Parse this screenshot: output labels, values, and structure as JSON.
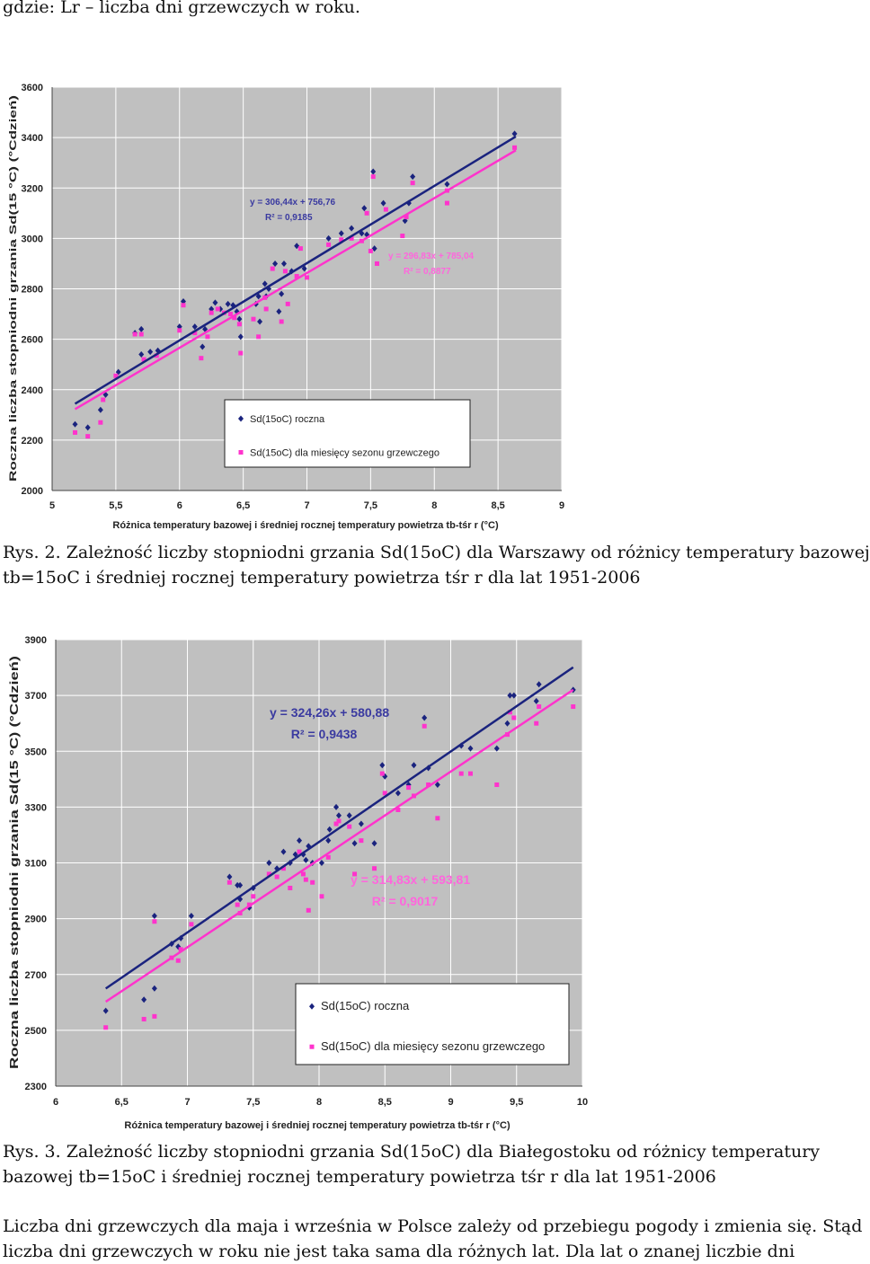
{
  "header_text": "gdzie: Lr – liczba dni grzewczych w roku.",
  "caption1": {
    "line1": "Rys. 2. Zależność liczby stopniodni grzania Sd(15oC) dla Warszawy od różnicy temperatury bazowej",
    "line2": "tb=15oC i średniej rocznej temperatury powietrza tśr r dla lat 1951-2006"
  },
  "caption2": {
    "line1": "Rys. 3. Zależność liczby stopniodni grzania Sd(15oC) dla Białegostoku od różnicy temperatury",
    "line2": "bazowej tb=15oC i średniej rocznej temperatury powietrza tśr r dla lat 1951-2006"
  },
  "footer": {
    "line1": "Liczba dni grzewczych dla maja i września w Polsce zależy od przebiegu pogody i zmienia się. Stąd",
    "line2": "liczba dni grzewczych w roku nie jest taka sama dla różnych lat. Dla lat o znanej liczbie dni"
  },
  "colors": {
    "plot_bg": "#c0c0c0",
    "grid": "#ffffff",
    "series_annual": "#1a237e",
    "series_season": "#ff33cc",
    "regression_annual_text": "#3a3aa0",
    "regression_season_text": "#ff66dd"
  },
  "chart_data": [
    {
      "type": "scatter",
      "title": "",
      "xlabel": "Różnica temperatury bazowej i średniej rocznej temperatury powietrza tb-tśr r (°C)",
      "ylabel": "Roczna liczba stopniodni grzania Sd(15 °C) (°Cdzień)",
      "xlim": [
        5,
        9
      ],
      "ylim": [
        2000,
        3600
      ],
      "xticks": [
        "5",
        "5,5",
        "6",
        "6,5",
        "7",
        "7,5",
        "8",
        "8,5",
        "9"
      ],
      "yticks": [
        "2000",
        "2200",
        "2400",
        "2600",
        "2800",
        "3000",
        "3200",
        "3400",
        "3600"
      ],
      "grid": true,
      "legend": {
        "placement": "bottom-center",
        "entries": [
          "Sd(15oC) roczna",
          "Sd(15oC) dla miesięcy sezonu grzewczego"
        ]
      },
      "annotations": [
        {
          "series": "annual",
          "line1": "y = 306,44x + 756,76",
          "line2": "R² = 0,9185"
        },
        {
          "series": "season",
          "line1": "y = 296,83x + 785,04",
          "line2": "R² = 0,8877"
        }
      ],
      "trendlines": [
        {
          "series": "annual",
          "slope": 306.44,
          "intercept": 756.76,
          "x_range": [
            5.18,
            8.64
          ]
        },
        {
          "series": "season",
          "slope": 296.83,
          "intercept": 785.04,
          "x_range": [
            5.18,
            8.64
          ]
        }
      ],
      "series": [
        {
          "name": "Sd(15oC) roczna",
          "key": "annual",
          "points": [
            [
              5.18,
              2263
            ],
            [
              5.28,
              2250
            ],
            [
              5.38,
              2320
            ],
            [
              5.42,
              2380
            ],
            [
              5.52,
              2470
            ],
            [
              5.65,
              2625
            ],
            [
              5.7,
              2640
            ],
            [
              5.7,
              2540
            ],
            [
              5.77,
              2550
            ],
            [
              5.83,
              2555
            ],
            [
              6.0,
              2650
            ],
            [
              6.03,
              2750
            ],
            [
              6.12,
              2650
            ],
            [
              6.18,
              2570
            ],
            [
              6.2,
              2640
            ],
            [
              6.25,
              2720
            ],
            [
              6.28,
              2745
            ],
            [
              6.32,
              2720
            ],
            [
              6.38,
              2740
            ],
            [
              6.42,
              2735
            ],
            [
              6.45,
              2710
            ],
            [
              6.47,
              2680
            ],
            [
              6.48,
              2610
            ],
            [
              6.6,
              2740
            ],
            [
              6.62,
              2770
            ],
            [
              6.63,
              2670
            ],
            [
              6.67,
              2820
            ],
            [
              6.68,
              2770
            ],
            [
              6.7,
              2800
            ],
            [
              6.75,
              2900
            ],
            [
              6.78,
              2710
            ],
            [
              6.8,
              2780
            ],
            [
              6.82,
              2900
            ],
            [
              6.88,
              2870
            ],
            [
              6.92,
              2970
            ],
            [
              6.98,
              2880
            ],
            [
              7.17,
              3000
            ],
            [
              7.27,
              3020
            ],
            [
              7.35,
              3040
            ],
            [
              7.43,
              3020
            ],
            [
              7.45,
              3120
            ],
            [
              7.47,
              3015
            ],
            [
              7.52,
              3265
            ],
            [
              7.53,
              2960
            ],
            [
              7.6,
              3140
            ],
            [
              7.77,
              3070
            ],
            [
              7.8,
              3140
            ],
            [
              7.83,
              3245
            ],
            [
              8.1,
              3215
            ],
            [
              8.63,
              3415
            ]
          ]
        },
        {
          "name": "Sd(15oC) dla miesięcy sezonu grzewczego",
          "key": "season",
          "points": [
            [
              5.18,
              2230
            ],
            [
              5.28,
              2215
            ],
            [
              5.38,
              2270
            ],
            [
              5.4,
              2360
            ],
            [
              5.5,
              2455
            ],
            [
              5.65,
              2620
            ],
            [
              5.7,
              2620
            ],
            [
              5.72,
              2520
            ],
            [
              5.82,
              2535
            ],
            [
              6.0,
              2635
            ],
            [
              6.03,
              2735
            ],
            [
              6.12,
              2625
            ],
            [
              6.17,
              2525
            ],
            [
              6.22,
              2610
            ],
            [
              6.25,
              2705
            ],
            [
              6.3,
              2720
            ],
            [
              6.35,
              2705
            ],
            [
              6.4,
              2700
            ],
            [
              6.43,
              2685
            ],
            [
              6.47,
              2660
            ],
            [
              6.48,
              2545
            ],
            [
              6.58,
              2680
            ],
            [
              6.62,
              2610
            ],
            [
              6.67,
              2765
            ],
            [
              6.68,
              2720
            ],
            [
              6.73,
              2880
            ],
            [
              6.8,
              2670
            ],
            [
              6.83,
              2870
            ],
            [
              6.85,
              2740
            ],
            [
              6.92,
              2850
            ],
            [
              6.95,
              2960
            ],
            [
              7.0,
              2845
            ],
            [
              7.17,
              2975
            ],
            [
              7.27,
              2995
            ],
            [
              7.35,
              3000
            ],
            [
              7.43,
              2990
            ],
            [
              7.47,
              3100
            ],
            [
              7.5,
              2950
            ],
            [
              7.52,
              3245
            ],
            [
              7.55,
              2900
            ],
            [
              7.62,
              3115
            ],
            [
              7.75,
              3010
            ],
            [
              7.78,
              3085
            ],
            [
              7.83,
              3220
            ],
            [
              8.1,
              3140
            ],
            [
              8.1,
              3190
            ],
            [
              8.63,
              3360
            ]
          ]
        }
      ]
    },
    {
      "type": "scatter",
      "title": "",
      "xlabel": "Różnica temperatury bazowej i średniej rocznej temperatury powietrza tb-tśr r (°C)",
      "ylabel": "Roczna liczba stopniodni grzania Sd(15 °C) (°Cdzień)",
      "xlim": [
        6,
        10
      ],
      "ylim": [
        2300,
        3900
      ],
      "xticks": [
        "6",
        "6,5",
        "7",
        "7,5",
        "8",
        "8,5",
        "9",
        "9,5",
        "10"
      ],
      "yticks": [
        "2300",
        "2500",
        "2700",
        "2900",
        "3100",
        "3300",
        "3500",
        "3700",
        "3900"
      ],
      "grid": true,
      "legend": {
        "placement": "bottom-right",
        "entries": [
          "Sd(15oC) roczna",
          "Sd(15oC) dla miesięcy sezonu grzewczego"
        ]
      },
      "annotations": [
        {
          "series": "annual",
          "line1": "y = 324,26x + 580,88",
          "line2": "R² = 0,9438"
        },
        {
          "series": "season",
          "line1": "y = 314,83x + 593,81",
          "line2": "R² = 0,9017"
        }
      ],
      "trendlines": [
        {
          "series": "annual",
          "slope": 324.26,
          "intercept": 580.88,
          "x_range": [
            6.38,
            9.93
          ]
        },
        {
          "series": "season",
          "slope": 314.83,
          "intercept": 593.81,
          "x_range": [
            6.38,
            9.93
          ]
        }
      ],
      "series": [
        {
          "name": "Sd(15oC) roczna",
          "key": "annual",
          "points": [
            [
              6.38,
              2570
            ],
            [
              6.67,
              2610
            ],
            [
              6.75,
              2650
            ],
            [
              6.75,
              2910
            ],
            [
              6.88,
              2810
            ],
            [
              6.93,
              2800
            ],
            [
              6.95,
              2830
            ],
            [
              7.03,
              2910
            ],
            [
              7.32,
              3050
            ],
            [
              7.38,
              3020
            ],
            [
              7.4,
              3020
            ],
            [
              7.4,
              2970
            ],
            [
              7.47,
              2940
            ],
            [
              7.5,
              3010
            ],
            [
              7.62,
              3100
            ],
            [
              7.68,
              3080
            ],
            [
              7.73,
              3140
            ],
            [
              7.78,
              3100
            ],
            [
              7.82,
              3130
            ],
            [
              7.85,
              3180
            ],
            [
              7.88,
              3130
            ],
            [
              7.9,
              3110
            ],
            [
              7.92,
              3160
            ],
            [
              7.95,
              3100
            ],
            [
              8.02,
              3100
            ],
            [
              8.07,
              3180
            ],
            [
              8.08,
              3220
            ],
            [
              8.13,
              3300
            ],
            [
              8.15,
              3270
            ],
            [
              8.23,
              3270
            ],
            [
              8.27,
              3170
            ],
            [
              8.32,
              3240
            ],
            [
              8.42,
              3170
            ],
            [
              8.48,
              3450
            ],
            [
              8.5,
              3410
            ],
            [
              8.6,
              3350
            ],
            [
              8.68,
              3380
            ],
            [
              8.72,
              3450
            ],
            [
              8.8,
              3620
            ],
            [
              8.83,
              3440
            ],
            [
              8.9,
              3380
            ],
            [
              9.08,
              3520
            ],
            [
              9.15,
              3510
            ],
            [
              9.35,
              3510
            ],
            [
              9.43,
              3600
            ],
            [
              9.45,
              3700
            ],
            [
              9.48,
              3700
            ],
            [
              9.65,
              3680
            ],
            [
              9.67,
              3740
            ],
            [
              9.93,
              3720
            ]
          ]
        },
        {
          "name": "Sd(15oC) dla miesięcy sezonu grzewczego",
          "key": "season",
          "points": [
            [
              6.38,
              2510
            ],
            [
              6.67,
              2540
            ],
            [
              6.75,
              2550
            ],
            [
              6.75,
              2890
            ],
            [
              6.88,
              2760
            ],
            [
              6.93,
              2750
            ],
            [
              6.95,
              2790
            ],
            [
              7.03,
              2880
            ],
            [
              7.32,
              3030
            ],
            [
              7.38,
              2950
            ],
            [
              7.4,
              2920
            ],
            [
              7.47,
              2950
            ],
            [
              7.5,
              2980
            ],
            [
              7.62,
              3060
            ],
            [
              7.68,
              3050
            ],
            [
              7.73,
              3080
            ],
            [
              7.78,
              3010
            ],
            [
              7.85,
              3140
            ],
            [
              7.88,
              3060
            ],
            [
              7.9,
              3040
            ],
            [
              7.92,
              2930
            ],
            [
              7.95,
              3030
            ],
            [
              8.02,
              2980
            ],
            [
              8.07,
              3120
            ],
            [
              8.13,
              3240
            ],
            [
              8.15,
              3250
            ],
            [
              8.23,
              3230
            ],
            [
              8.27,
              3060
            ],
            [
              8.32,
              3180
            ],
            [
              8.42,
              3080
            ],
            [
              8.48,
              3420
            ],
            [
              8.5,
              3350
            ],
            [
              8.6,
              3290
            ],
            [
              8.68,
              3370
            ],
            [
              8.72,
              3340
            ],
            [
              8.8,
              3590
            ],
            [
              8.83,
              3380
            ],
            [
              8.9,
              3260
            ],
            [
              9.08,
              3420
            ],
            [
              9.15,
              3420
            ],
            [
              9.35,
              3380
            ],
            [
              9.43,
              3560
            ],
            [
              9.45,
              3640
            ],
            [
              9.48,
              3620
            ],
            [
              9.65,
              3600
            ],
            [
              9.67,
              3660
            ],
            [
              9.93,
              3660
            ]
          ]
        }
      ]
    }
  ]
}
